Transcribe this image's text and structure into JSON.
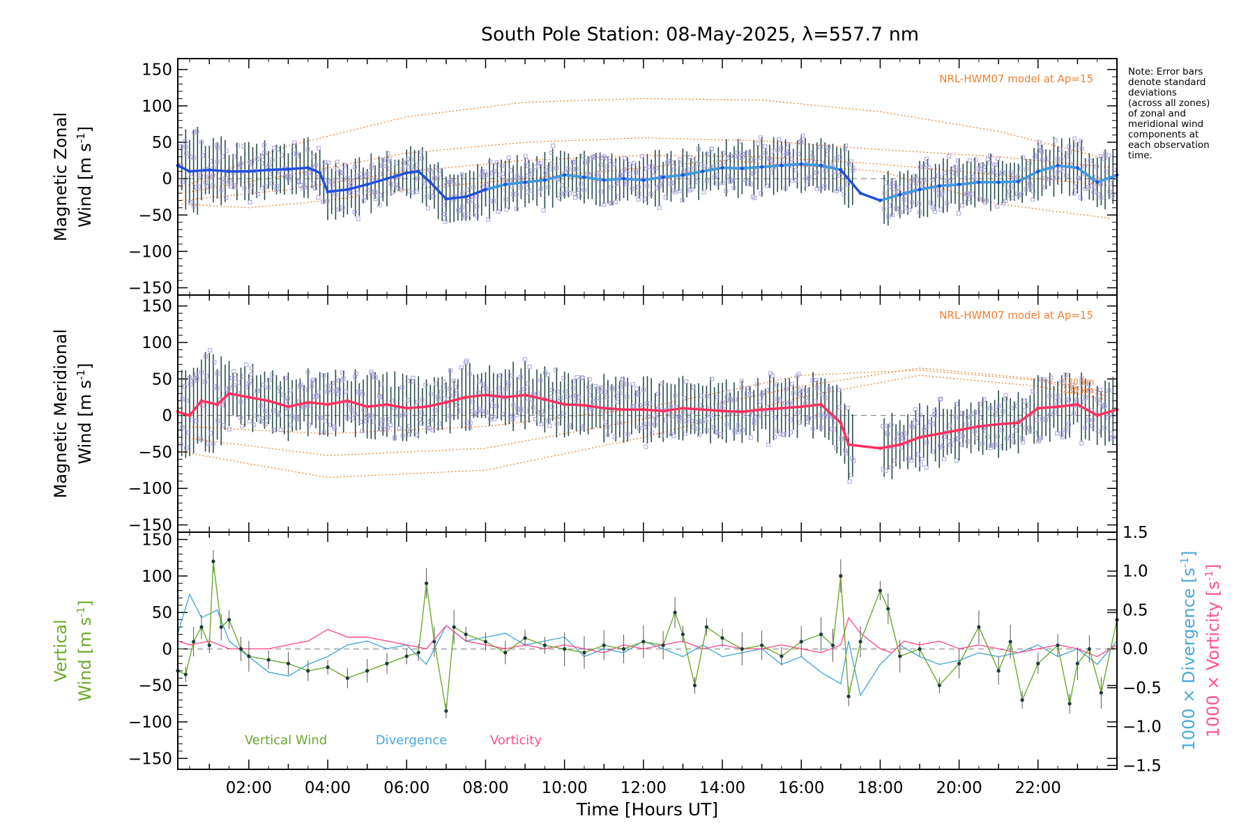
{
  "title": "South Pole Station: 08-May-2025, λ=557.7 nm",
  "note_lines": [
    "Note: Error bars",
    "denote standard",
    "deviations",
    "(across all zones)",
    "of zonal and",
    "meridional wind",
    "components at",
    "each observation",
    "time."
  ],
  "colors": {
    "zonal": "#1f4fe0",
    "zonal_light": "#3aa0e0",
    "meridional": "#ff3060",
    "vertical": "#6aaa2a",
    "divergence": "#4aa8d8",
    "vorticity": "#ff4f8f",
    "model": "#f08030",
    "scatter": "#a8a0d8",
    "errorbar": "#2a4a4a",
    "ytick_color_right_div": "#4aa8d8"
  },
  "x_axis": {
    "label": "Time [Hours UT]",
    "range": [
      0.2,
      24.0
    ],
    "tick_values": [
      2,
      4,
      6,
      8,
      10,
      12,
      14,
      16,
      18,
      20,
      22
    ],
    "tick_labels": [
      "02:00",
      "04:00",
      "06:00",
      "08:00",
      "10:00",
      "12:00",
      "14:00",
      "16:00",
      "18:00",
      "20:00",
      "22:00"
    ]
  },
  "chart_data": [
    {
      "type": "line",
      "panel": "zonal",
      "ylabel_line1": "Magnetic Zonal",
      "ylabel_line2": "Wind [m s",
      "ylabel_sup": "-1",
      "ylabel_close": "]",
      "ylim": [
        -160,
        165
      ],
      "yticks": [
        -150,
        -100,
        -50,
        0,
        50,
        100,
        150
      ],
      "ytick_labels": [
        "−150",
        "−100",
        "−50",
        "0",
        "50",
        "100",
        "150"
      ],
      "model_label": "NRL-HWM07 model at Ap=15",
      "model_curves": [
        {
          "name": "upper",
          "x": [
            0.3,
            3,
            6,
            9,
            12,
            15,
            18,
            21,
            23.9
          ],
          "y": [
            -12,
            45,
            85,
            105,
            110,
            108,
            92,
            65,
            25
          ]
        },
        {
          "name": "mid",
          "x": [
            0.3,
            3,
            6,
            9,
            12,
            15,
            18,
            21,
            23.9
          ],
          "y": [
            -20,
            5,
            35,
            50,
            56,
            52,
            40,
            30,
            15
          ]
        },
        {
          "name": "lower",
          "x": [
            0.3,
            3,
            6,
            9,
            12,
            15,
            18,
            21,
            23.9
          ],
          "y": [
            -30,
            -15,
            10,
            25,
            32,
            30,
            20,
            5,
            -10
          ]
        },
        {
          "name": "bottom",
          "x": [
            0.3,
            2,
            4,
            6,
            10,
            14,
            18,
            21,
            23.9
          ],
          "y": [
            -35,
            -40,
            -30,
            -15,
            5,
            25,
            10,
            -35,
            -55
          ]
        }
      ],
      "series": [
        {
          "name": "Magnetic Zonal Wind",
          "x": [
            0.2,
            0.5,
            1.0,
            1.5,
            2.0,
            2.5,
            3.0,
            3.5,
            3.8,
            4.0,
            4.5,
            5.0,
            5.5,
            6.0,
            6.3,
            6.6,
            7.0,
            7.5,
            8.0,
            8.5,
            9.0,
            9.5,
            10.0,
            10.5,
            11.0,
            11.5,
            12.0,
            12.5,
            13.0,
            13.5,
            14.0,
            14.5,
            15.0,
            15.5,
            16.0,
            16.5,
            17.0,
            17.5,
            18.0,
            18.5,
            19.0,
            19.5,
            20.0,
            20.5,
            21.0,
            21.5,
            22.0,
            22.5,
            23.0,
            23.5,
            24.0
          ],
          "y": [
            18,
            10,
            12,
            10,
            10,
            12,
            13,
            15,
            8,
            -18,
            -15,
            -8,
            0,
            8,
            10,
            -5,
            -28,
            -25,
            -15,
            -8,
            -5,
            -2,
            5,
            2,
            -2,
            0,
            -2,
            2,
            5,
            10,
            15,
            14,
            16,
            18,
            20,
            18,
            12,
            -20,
            -30,
            -22,
            -15,
            -10,
            -8,
            -5,
            -5,
            -4,
            10,
            18,
            15,
            -5,
            5
          ]
        }
      ],
      "error_sd": 35
    },
    {
      "type": "line",
      "panel": "meridional",
      "ylabel_line1": "Magnetic Meridional",
      "ylabel_line2": "Wind [m s",
      "ylabel_sup": "-1",
      "ylabel_close": "]",
      "ylim": [
        -160,
        165
      ],
      "yticks": [
        -150,
        -100,
        -50,
        0,
        50,
        100,
        150
      ],
      "ytick_labels": [
        "−150",
        "−100",
        "−50",
        "0",
        "50",
        "100",
        "150"
      ],
      "model_label": "NRL-HWM07 model at Ap=15",
      "model_alt_labels": [
        "120 km",
        "130 km"
      ],
      "model_curves": [
        {
          "name": "upper",
          "x": [
            0.3,
            4,
            8,
            12,
            16,
            19,
            22,
            23.9
          ],
          "y": [
            -50,
            -85,
            -75,
            -30,
            25,
            55,
            40,
            20
          ]
        },
        {
          "name": "mid",
          "x": [
            0.3,
            4,
            8,
            12,
            16,
            19,
            22,
            23.9
          ],
          "y": [
            -30,
            -55,
            -45,
            -5,
            40,
            65,
            50,
            30
          ]
        },
        {
          "name": "lower",
          "x": [
            0.3,
            4,
            8,
            12,
            16,
            19,
            22,
            23.9
          ],
          "y": [
            -15,
            -25,
            -15,
            10,
            55,
            62,
            48,
            25
          ]
        }
      ],
      "series": [
        {
          "name": "Magnetic Meridional Wind",
          "x": [
            0.2,
            0.5,
            0.8,
            1.2,
            1.5,
            2.0,
            2.5,
            3.0,
            3.5,
            4.0,
            4.5,
            5.0,
            5.5,
            6.0,
            6.5,
            7.0,
            7.5,
            8.0,
            8.5,
            9.0,
            9.5,
            10.0,
            10.5,
            11.0,
            11.5,
            12.0,
            12.5,
            13.0,
            13.5,
            14.0,
            14.5,
            15.0,
            15.5,
            16.0,
            16.5,
            17.0,
            17.2,
            18.0,
            18.5,
            19.0,
            19.5,
            20.0,
            20.5,
            21.0,
            21.5,
            22.0,
            22.5,
            23.0,
            23.5,
            24.0
          ],
          "y": [
            5,
            0,
            20,
            15,
            30,
            25,
            20,
            12,
            18,
            15,
            20,
            12,
            15,
            10,
            12,
            18,
            25,
            28,
            25,
            28,
            22,
            15,
            14,
            10,
            8,
            8,
            6,
            10,
            8,
            6,
            5,
            8,
            10,
            12,
            15,
            -10,
            -40,
            -45,
            -40,
            -30,
            -25,
            -20,
            -15,
            -12,
            -10,
            10,
            12,
            15,
            0,
            8
          ]
        }
      ],
      "error_sd": 40
    },
    {
      "type": "line",
      "panel": "vertical",
      "ylabel_left_1": "Vertical",
      "ylabel_left_2": "Wind [m s",
      "ylabel_left_sup": "-1",
      "ylabel_left_close": "]",
      "ylabel_right_div": "1000 × Divergence [s",
      "ylabel_right_vort": "1000 × Vorticity [s",
      "ylabel_right_sup": "-1",
      "ylabel_right_close": "]",
      "ylim": [
        -165,
        160
      ],
      "yticks": [
        -150,
        -100,
        -50,
        0,
        50,
        100,
        150
      ],
      "ytick_labels": [
        "−150",
        "−100",
        "−50",
        "0",
        "50",
        "100",
        "150"
      ],
      "y2lim": [
        -1.55,
        1.5
      ],
      "y2ticks": [
        -1.5,
        -1.0,
        -0.5,
        0.0,
        0.5,
        1.0,
        1.5
      ],
      "y2tick_labels": [
        "−1.5",
        "−1.0",
        "−0.5",
        "0.0",
        "0.5",
        "1.0",
        "1.5"
      ],
      "legend": [
        "Vertical Wind",
        "Divergence",
        "Vorticity"
      ],
      "series": [
        {
          "name": "Vertical Wind",
          "x": [
            0.2,
            0.4,
            0.6,
            0.8,
            1.0,
            1.1,
            1.3,
            1.5,
            1.8,
            2.0,
            2.5,
            3.0,
            3.5,
            4.0,
            4.5,
            5.0,
            5.5,
            6.0,
            6.3,
            6.5,
            6.7,
            7.0,
            7.2,
            7.5,
            8.0,
            8.5,
            9.0,
            9.5,
            10.0,
            10.5,
            11.0,
            11.5,
            12.0,
            12.5,
            12.8,
            13.0,
            13.3,
            13.6,
            14.0,
            14.5,
            15.0,
            15.5,
            16.0,
            16.5,
            16.8,
            17.0,
            17.2,
            17.5,
            18.0,
            18.2,
            18.5,
            19.0,
            19.5,
            20.0,
            20.5,
            21.0,
            21.3,
            21.6,
            22.0,
            22.5,
            22.8,
            23.0,
            23.3,
            23.6,
            24.0
          ],
          "y": [
            -30,
            -35,
            10,
            30,
            5,
            120,
            30,
            40,
            0,
            -10,
            -15,
            -20,
            -30,
            -25,
            -40,
            -30,
            -20,
            -10,
            -5,
            90,
            10,
            -85,
            30,
            20,
            10,
            -5,
            15,
            5,
            0,
            -5,
            5,
            0,
            10,
            5,
            50,
            20,
            -50,
            30,
            15,
            0,
            5,
            -10,
            10,
            20,
            5,
            100,
            -65,
            10,
            80,
            55,
            -10,
            0,
            -50,
            -20,
            30,
            -30,
            10,
            -70,
            -20,
            5,
            -75,
            -20,
            0,
            -60,
            40
          ]
        },
        {
          "name": "Divergence",
          "x": [
            0.2,
            0.5,
            0.8,
            1.2,
            1.5,
            2.0,
            2.5,
            3.0,
            3.5,
            4.0,
            4.5,
            5.0,
            5.5,
            6.0,
            6.5,
            7.0,
            7.5,
            8.0,
            8.5,
            9.0,
            9.5,
            10.0,
            10.5,
            11.0,
            11.5,
            12.0,
            12.5,
            13.0,
            13.5,
            14.0,
            14.5,
            15.0,
            15.5,
            16.0,
            16.5,
            17.0,
            17.2,
            17.5,
            18.0,
            18.5,
            19.0,
            19.5,
            20.0,
            20.5,
            21.0,
            21.5,
            22.0,
            22.5,
            23.0,
            23.5,
            24.0
          ],
          "y": [
            0.2,
            0.7,
            0.4,
            0.5,
            0.1,
            -0.1,
            -0.3,
            -0.35,
            -0.2,
            -0.1,
            0.05,
            0.1,
            0.0,
            0.05,
            -0.2,
            0.3,
            0.1,
            0.15,
            0.2,
            0.05,
            0.1,
            0.15,
            -0.1,
            0.0,
            -0.05,
            0.1,
            0.0,
            -0.1,
            0.05,
            -0.1,
            -0.05,
            0.0,
            -0.2,
            -0.1,
            -0.3,
            -0.45,
            0.1,
            -0.6,
            -0.2,
            0.05,
            -0.1,
            -0.2,
            -0.15,
            -0.05,
            -0.1,
            -0.05,
            0.05,
            -0.1,
            0.0,
            -0.2,
            0.1
          ]
        },
        {
          "name": "Vorticity",
          "x": [
            0.2,
            0.5,
            1.0,
            1.5,
            2.0,
            2.5,
            3.0,
            3.5,
            4.0,
            4.5,
            5.0,
            5.5,
            6.0,
            6.5,
            7.0,
            7.5,
            8.0,
            8.5,
            9.0,
            9.5,
            10.0,
            10.5,
            11.0,
            11.5,
            12.0,
            12.5,
            13.0,
            13.5,
            14.0,
            14.5,
            15.0,
            15.5,
            16.0,
            16.5,
            17.0,
            17.2,
            17.5,
            18.0,
            18.3,
            18.6,
            19.0,
            19.5,
            20.0,
            20.5,
            21.0,
            21.5,
            22.0,
            22.5,
            23.0,
            23.5,
            24.0
          ],
          "y": [
            0.1,
            0.05,
            0.1,
            0.0,
            0.0,
            0.0,
            0.05,
            0.1,
            0.25,
            0.15,
            0.15,
            0.1,
            0.05,
            0.0,
            0.3,
            0.1,
            0.05,
            0.0,
            0.05,
            0.0,
            0.05,
            0.0,
            -0.05,
            0.05,
            0.0,
            0.05,
            0.1,
            0.0,
            0.05,
            0.0,
            0.0,
            0.05,
            0.0,
            -0.05,
            0.05,
            0.4,
            0.2,
            0.0,
            -0.05,
            0.1,
            0.05,
            0.1,
            0.0,
            0.05,
            0.0,
            -0.05,
            0.0,
            0.05,
            0.0,
            -0.1,
            0.05
          ]
        }
      ]
    }
  ]
}
